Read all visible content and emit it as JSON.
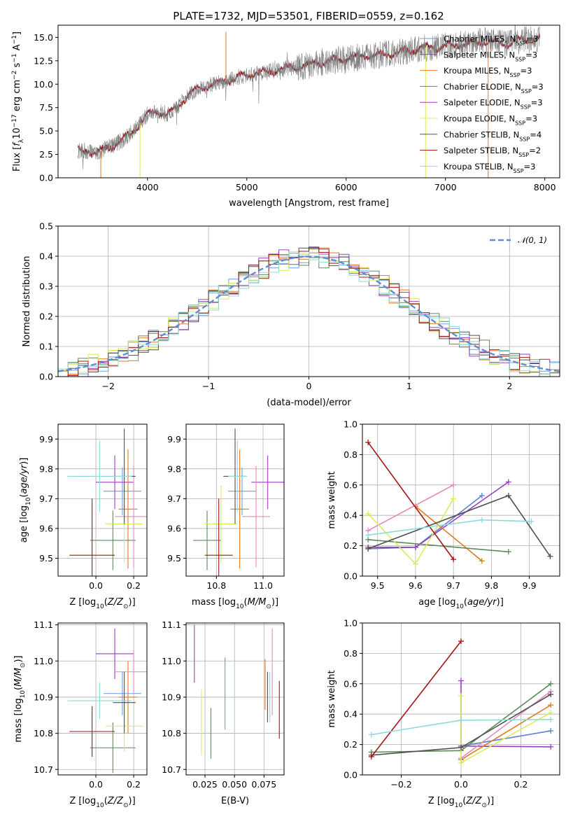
{
  "figure_title": "PLATE=1732, MJD=53501, FIBERID=0559, z=0.162",
  "models": [
    {
      "name": "Chabrier MILES, N_SSP=3",
      "color": "#6a9de0"
    },
    {
      "name": "Salpeter MILES, N_SSP=3",
      "color": "#9a3ec0"
    },
    {
      "name": "Kroupa MILES, N_SSP=3",
      "color": "#e07a1f"
    },
    {
      "name": "Chabrier ELODIE, N_SSP=3",
      "color": "#5b8a5b"
    },
    {
      "name": "Salpeter ELODIE, N_SSP=3",
      "color": "#9a3ec0"
    },
    {
      "name": "Kroupa ELODIE, N_SSP=3",
      "color": "#d8ec5a"
    },
    {
      "name": "Chabrier STELIB, N_SSP=4",
      "color": "#505050"
    },
    {
      "name": "Salpeter STELIB, N_SSP=2",
      "color": "#a31515"
    },
    {
      "name": "Kroupa STELIB, N_SSP=3",
      "color": "#8ddada"
    }
  ],
  "chart_data": [
    {
      "id": "spectrum",
      "type": "line",
      "title": "PLATE=1732, MJD=53501, FIBERID=0559, z=0.162",
      "xlabel": "wavelength [Angstrom, rest frame]",
      "ylabel": "Flux [f_λ 10^-17 erg cm^-2 s^-1 A^-1]",
      "xlim": [
        3100,
        8150
      ],
      "ylim": [
        0,
        16.3
      ],
      "xticks": [
        4000,
        5000,
        6000,
        7000,
        8000
      ],
      "yticks": [
        0.0,
        2.5,
        5.0,
        7.5,
        10.0,
        12.5,
        15.0
      ],
      "legend_position": "top-right",
      "data_color": "#808080",
      "continuum": {
        "x": [
          3300,
          3400,
          3500,
          3600,
          3700,
          3800,
          3900,
          4000,
          4100,
          4200,
          4300,
          4400,
          4500,
          4600,
          4800,
          5000,
          5200,
          5400,
          5600,
          5800,
          6000,
          6200,
          6400,
          6600,
          6800,
          7000,
          7200,
          7400,
          7600,
          7800,
          7950
        ],
        "y": [
          2.9,
          2.9,
          2.7,
          3.2,
          3.7,
          4.4,
          5.6,
          6.8,
          7.1,
          6.8,
          7.5,
          8.8,
          9.5,
          9.8,
          10.4,
          11.0,
          11.3,
          11.7,
          12.0,
          12.4,
          12.7,
          13.0,
          13.2,
          13.5,
          13.9,
          14.0,
          14.3,
          14.6,
          14.3,
          14.8,
          14.8
        ]
      }
    },
    {
      "id": "residuals",
      "type": "line",
      "xlabel": "(data-model)/error",
      "ylabel": "Normed distribution",
      "xlim": [
        -2.5,
        2.5
      ],
      "ylim": [
        0,
        0.5
      ],
      "xticks": [
        -2,
        -1,
        0,
        1,
        2
      ],
      "yticks": [
        0.0,
        0.1,
        0.2,
        0.3,
        0.4,
        0.5
      ],
      "grid": true,
      "reference_label": "𝒩(0, 1)",
      "reference_color": "#5a8fd6",
      "legend_position": "top-right"
    },
    {
      "id": "age-vs-Z",
      "type": "scatter",
      "xlabel": "Z [log10(Z/Z⊙)]",
      "ylabel": "age [log10(age/yr)]",
      "xlim": [
        -0.2,
        0.27
      ],
      "ylim": [
        9.44,
        9.95
      ],
      "xticks": [
        0.0,
        0.2
      ],
      "xtick_labels": [
        "0.0",
        "0.2"
      ],
      "yticks": [
        9.5,
        9.6,
        9.7,
        9.8,
        9.9
      ],
      "grid": true,
      "points": [
        {
          "model": 0,
          "x": 0.14,
          "y": 9.725,
          "xerr": 0.1,
          "yerr": 0.08
        },
        {
          "model": 1,
          "x": 0.1,
          "y": 9.755,
          "xerr": 0.1,
          "yerr": 0.09
        },
        {
          "model": 2,
          "x": 0.17,
          "y": 9.665,
          "xerr": 0.05,
          "yerr": 0.2
        },
        {
          "model": 3,
          "x": 0.09,
          "y": 9.56,
          "xerr": 0.12,
          "yerr": 0.1
        },
        {
          "model": 4,
          "x": 0.2,
          "y": 9.64,
          "xerr": 0.1,
          "yerr": 0.17
        },
        {
          "model": 5,
          "x": 0.15,
          "y": 9.615,
          "xerr": 0.1,
          "yerr": 0.13
        },
        {
          "model": 6,
          "x": 0.15,
          "y": 9.775,
          "xerr": 0.06,
          "yerr": 0.16
        },
        {
          "model": 7,
          "x": -0.02,
          "y": 9.51,
          "xerr": 0.12,
          "yerr": 0.19
        },
        {
          "model": 8,
          "x": 0.02,
          "y": 9.775,
          "xerr": 0.17,
          "yerr": 0.12
        }
      ]
    },
    {
      "id": "age-vs-mass",
      "type": "scatter",
      "xlabel": "mass [log10(M/M⊙)]",
      "ylabel": "",
      "xlim": [
        10.67,
        11.09
      ],
      "ylim": [
        9.44,
        9.95
      ],
      "xticks": [
        10.8,
        11.0
      ],
      "xtick_labels": [
        "10.8",
        "11.0"
      ],
      "yticks": [
        9.5,
        9.6,
        9.7,
        9.8,
        9.9
      ],
      "grid": true,
      "points": [
        {
          "model": 0,
          "x": 10.91,
          "y": 9.725,
          "xerr": 0.06,
          "yerr": 0.08
        },
        {
          "model": 1,
          "x": 11.02,
          "y": 9.755,
          "xerr": 0.07,
          "yerr": 0.09
        },
        {
          "model": 2,
          "x": 10.9,
          "y": 9.665,
          "xerr": 0.04,
          "yerr": 0.2
        },
        {
          "model": 3,
          "x": 10.76,
          "y": 9.56,
          "xerr": 0.06,
          "yerr": 0.1
        },
        {
          "model": 4,
          "x": 10.97,
          "y": 9.64,
          "xerr": 0.06,
          "yerr": 0.17
        },
        {
          "model": 5,
          "x": 10.82,
          "y": 9.615,
          "xerr": 0.07,
          "yerr": 0.13
        },
        {
          "model": 6,
          "x": 10.88,
          "y": 9.775,
          "xerr": 0.05,
          "yerr": 0.16
        },
        {
          "model": 7,
          "x": 10.81,
          "y": 9.51,
          "xerr": 0.06,
          "yerr": 0.19
        },
        {
          "model": 8,
          "x": 10.89,
          "y": 9.775,
          "xerr": 0.04,
          "yerr": 0.12
        }
      ]
    },
    {
      "id": "weight-vs-age",
      "type": "line",
      "xlabel": "age [log10(age/yr)]",
      "ylabel": "mass weight",
      "xlim": [
        9.46,
        9.98
      ],
      "ylim": [
        0,
        1.0
      ],
      "xticks": [
        9.5,
        9.6,
        9.7,
        9.8,
        9.9
      ],
      "yticks": [
        0.0,
        0.2,
        0.4,
        0.6,
        0.8,
        1.0
      ],
      "grid": true,
      "series": [
        {
          "model": 0,
          "x": [
            9.475,
            9.6,
            9.775
          ],
          "y": [
            0.18,
            0.19,
            0.53
          ]
        },
        {
          "model": 1,
          "x": [
            9.475,
            9.6,
            9.845
          ],
          "y": [
            0.19,
            0.19,
            0.62
          ]
        },
        {
          "model": 2,
          "x": [
            9.6,
            9.775
          ],
          "y": [
            0.46,
            0.1
          ]
        },
        {
          "model": 3,
          "x": [
            9.475,
            9.845
          ],
          "y": [
            0.24,
            0.16
          ]
        },
        {
          "model": 4,
          "x": [
            9.475,
            9.7
          ],
          "y": [
            0.3,
            0.6
          ]
        },
        {
          "model": 5,
          "x": [
            9.475,
            9.6,
            9.7
          ],
          "y": [
            0.41,
            0.08,
            0.51
          ]
        },
        {
          "model": 6,
          "x": [
            9.475,
            9.845,
            9.955
          ],
          "y": [
            0.18,
            0.53,
            0.13
          ]
        },
        {
          "model": 7,
          "x": [
            9.475,
            9.7
          ],
          "y": [
            0.88,
            0.11
          ]
        },
        {
          "model": 8,
          "x": [
            9.475,
            9.775,
            9.905
          ],
          "y": [
            0.27,
            0.37,
            0.36
          ]
        }
      ]
    },
    {
      "id": "mass-vs-Z",
      "type": "scatter",
      "xlabel": "Z [log10(Z/Z⊙)]",
      "ylabel": "mass [log10(M/M⊙)]",
      "xlim": [
        -0.2,
        0.27
      ],
      "ylim": [
        10.685,
        11.105
      ],
      "xticks": [
        0.0,
        0.2
      ],
      "xtick_labels": [
        "0.0",
        "0.2"
      ],
      "yticks": [
        10.7,
        10.8,
        10.9,
        11.0,
        11.1
      ],
      "grid": true,
      "points": [
        {
          "model": 0,
          "x": 0.14,
          "y": 10.91,
          "xerr": 0.1,
          "yerr": 0.06
        },
        {
          "model": 1,
          "x": 0.1,
          "y": 11.02,
          "xerr": 0.1,
          "yerr": 0.07
        },
        {
          "model": 2,
          "x": 0.17,
          "y": 10.9,
          "xerr": 0.05,
          "yerr": 0.1
        },
        {
          "model": 3,
          "x": 0.09,
          "y": 10.76,
          "xerr": 0.12,
          "yerr": 0.07
        },
        {
          "model": 4,
          "x": 0.2,
          "y": 10.97,
          "xerr": 0.1,
          "yerr": 0.06
        },
        {
          "model": 5,
          "x": 0.15,
          "y": 10.82,
          "xerr": 0.1,
          "yerr": 0.07
        },
        {
          "model": 6,
          "x": 0.15,
          "y": 10.885,
          "xerr": 0.06,
          "yerr": 0.085
        },
        {
          "model": 7,
          "x": -0.02,
          "y": 10.805,
          "xerr": 0.12,
          "yerr": 0.07
        },
        {
          "model": 8,
          "x": 0.02,
          "y": 10.89,
          "xerr": 0.17,
          "yerr": 0.05
        }
      ]
    },
    {
      "id": "mass-vs-ebv",
      "type": "scatter",
      "xlabel": "E(B-V)",
      "ylabel": "",
      "xlim": [
        0.009,
        0.092
      ],
      "ylim": [
        10.685,
        11.105
      ],
      "xticks": [
        0.025,
        0.05,
        0.075
      ],
      "xtick_labels": [
        "0.025",
        "0.050",
        "0.075"
      ],
      "yticks": [
        10.7,
        10.8,
        10.9,
        11.0,
        11.1
      ],
      "grid": true,
      "points": [
        {
          "model": 0,
          "x": 0.042,
          "y": 10.91,
          "xerr": 0,
          "yerr": 0.1
        },
        {
          "model": 1,
          "x": 0.016,
          "y": 11.02,
          "xerr": 0,
          "yerr": 0.08
        },
        {
          "model": 2,
          "x": 0.076,
          "y": 10.935,
          "xerr": 0,
          "yerr": 0.07
        },
        {
          "model": 3,
          "x": 0.03,
          "y": 10.8,
          "xerr": 0,
          "yerr": 0.07
        },
        {
          "model": 4,
          "x": 0.082,
          "y": 10.97,
          "xerr": 0,
          "yerr": 0.12
        },
        {
          "model": 5,
          "x": 0.022,
          "y": 10.83,
          "xerr": 0,
          "yerr": 0.09
        },
        {
          "model": 6,
          "x": 0.078,
          "y": 10.9,
          "xerr": 0,
          "yerr": 0.07
        },
        {
          "model": 7,
          "x": 0.088,
          "y": 10.865,
          "xerr": 0,
          "yerr": 0.08
        },
        {
          "model": 8,
          "x": 0.08,
          "y": 10.9,
          "xerr": 0,
          "yerr": 0.07
        }
      ]
    },
    {
      "id": "weight-vs-Z",
      "type": "line",
      "xlabel": "Z [log10(Z/Z⊙)]",
      "ylabel": "mass weight",
      "xlim": [
        -0.33,
        0.33
      ],
      "ylim": [
        0,
        1.0
      ],
      "xticks": [
        -0.2,
        0.0,
        0.2
      ],
      "xtick_labels": [
        "−0.2",
        "0.0",
        "0.2"
      ],
      "yticks": [
        0.0,
        0.2,
        0.4,
        0.6,
        0.8,
        1.0
      ],
      "grid": true,
      "series": [
        {
          "model": 0,
          "x": [
            0.0,
            0.3
          ],
          "y": [
            0.19,
            0.29
          ]
        },
        {
          "model": 1,
          "x": [
            0.0,
            0.0,
            0.3
          ],
          "y": [
            0.62,
            0.19,
            0.185
          ]
        },
        {
          "model": 2,
          "x": [
            0.0,
            0.3
          ],
          "y": [
            0.1,
            0.46
          ]
        },
        {
          "model": 3,
          "x": [
            -0.3,
            0.0,
            0.3
          ],
          "y": [
            0.15,
            0.16,
            0.6
          ]
        },
        {
          "model": 4,
          "x": [
            0.0,
            0.3
          ],
          "y": [
            0.11,
            0.55
          ]
        },
        {
          "model": 5,
          "x": [
            0.0,
            0.0,
            0.3
          ],
          "y": [
            0.52,
            0.08,
            0.41
          ]
        },
        {
          "model": 6,
          "x": [
            -0.3,
            0.0,
            0.3
          ],
          "y": [
            0.13,
            0.18,
            0.53
          ]
        },
        {
          "model": 7,
          "x": [
            -0.3,
            0.0
          ],
          "y": [
            0.12,
            0.88
          ]
        },
        {
          "model": 8,
          "x": [
            -0.3,
            0.0,
            0.3
          ],
          "y": [
            0.265,
            0.36,
            0.365
          ]
        }
      ]
    }
  ]
}
